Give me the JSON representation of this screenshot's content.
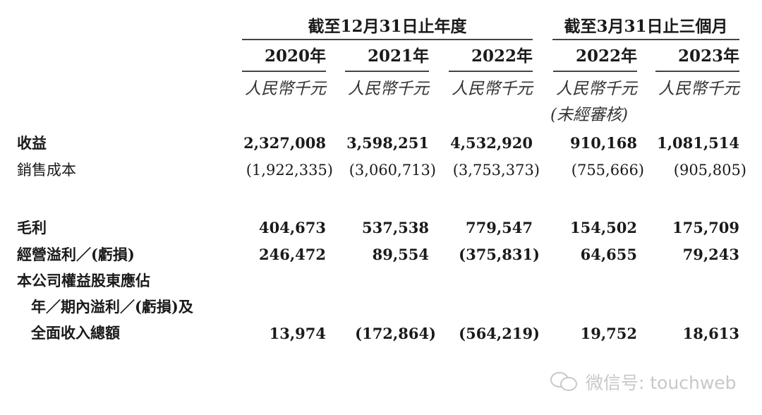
{
  "header": {
    "group_annual": "截至12月31日止年度",
    "group_quarter": "截至3月31日止三個月",
    "years": [
      "2020年",
      "2021年",
      "2022年",
      "2022年",
      "2023年"
    ],
    "unit": "人民幣千元",
    "unaudited": "(未經審核)"
  },
  "rows": [
    {
      "label": "收益",
      "values": [
        "2,327,008",
        "3,598,251",
        "4,532,920",
        "910,168",
        "1,081,514"
      ]
    },
    {
      "label": "銷售成本",
      "values": [
        "(1,922,335)",
        "(3,060,713)",
        "(3,753,373)",
        "(755,666)",
        "(905,805)"
      ]
    },
    {
      "label": "毛利",
      "values": [
        "404,673",
        "537,538",
        "779,547",
        "154,502",
        "175,709"
      ]
    },
    {
      "label": "經營溢利／(虧損)",
      "values": [
        "246,472",
        "89,554",
        "(375,831)",
        "64,655",
        "79,243"
      ]
    },
    {
      "label_lines": [
        "本公司權益股東應佔",
        "年／期內溢利／(虧損)及",
        "全面收入總額"
      ],
      "values": [
        "13,974",
        "(172,864)",
        "(564,219)",
        "19,752",
        "18,613"
      ]
    }
  ],
  "watermark": {
    "icon": "wechat-icon",
    "text": "微信号: touchweb"
  }
}
